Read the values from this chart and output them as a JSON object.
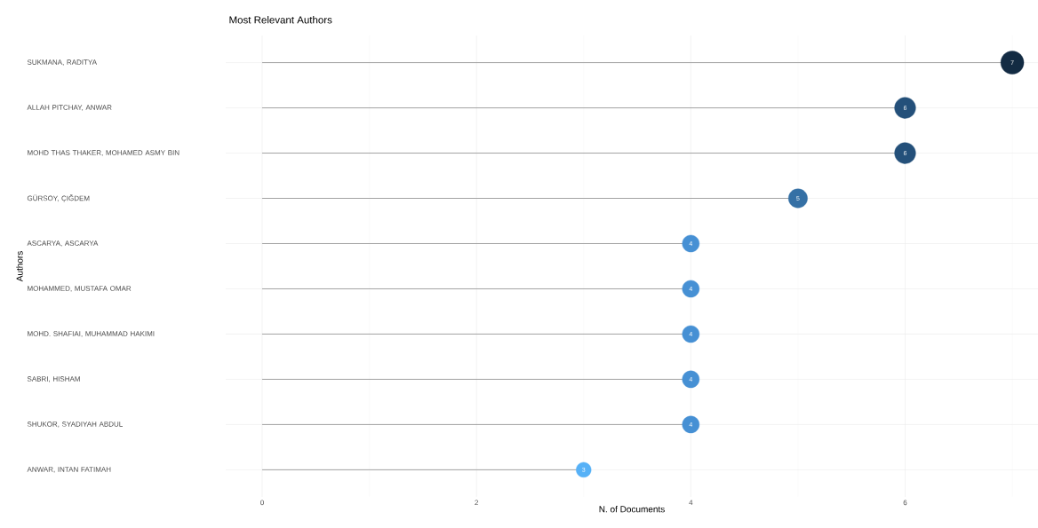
{
  "chart_data": {
    "type": "lollipop",
    "orientation": "horizontal",
    "title": "Most Relevant Authors",
    "xlabel": "N. of Documents",
    "ylabel": "Authors",
    "categories": [
      "SUKMANA, RADITYA",
      "ALLAH PITCHAY, ANWAR",
      "MOHD THAS THAKER, MOHAMED ASMY BIN",
      "GÜRSOY, ÇIĞDEM",
      "ASCARYA, ASCARYA",
      "MOHAMMED, MUSTAFA OMAR",
      "MOHD. SHAFIAI, MUHAMMAD HAKIMI",
      "SABRI, HISHAM",
      "SHUKOR, SYADIYAH ABDUL",
      "ANWAR, INTAN FATIMAH"
    ],
    "values": [
      7,
      6,
      6,
      5,
      4,
      4,
      4,
      4,
      4,
      3
    ],
    "colors": [
      "#132b43",
      "#24507a",
      "#24507a",
      "#3570a5",
      "#4690d4",
      "#4690d4",
      "#4690d4",
      "#4690d4",
      "#4690d4",
      "#56b1f7"
    ],
    "xlim": [
      -0.34,
      7.24
    ],
    "xticks": [
      0,
      2,
      4,
      6
    ],
    "grid": true,
    "data_labels": true,
    "marker": "circle"
  }
}
